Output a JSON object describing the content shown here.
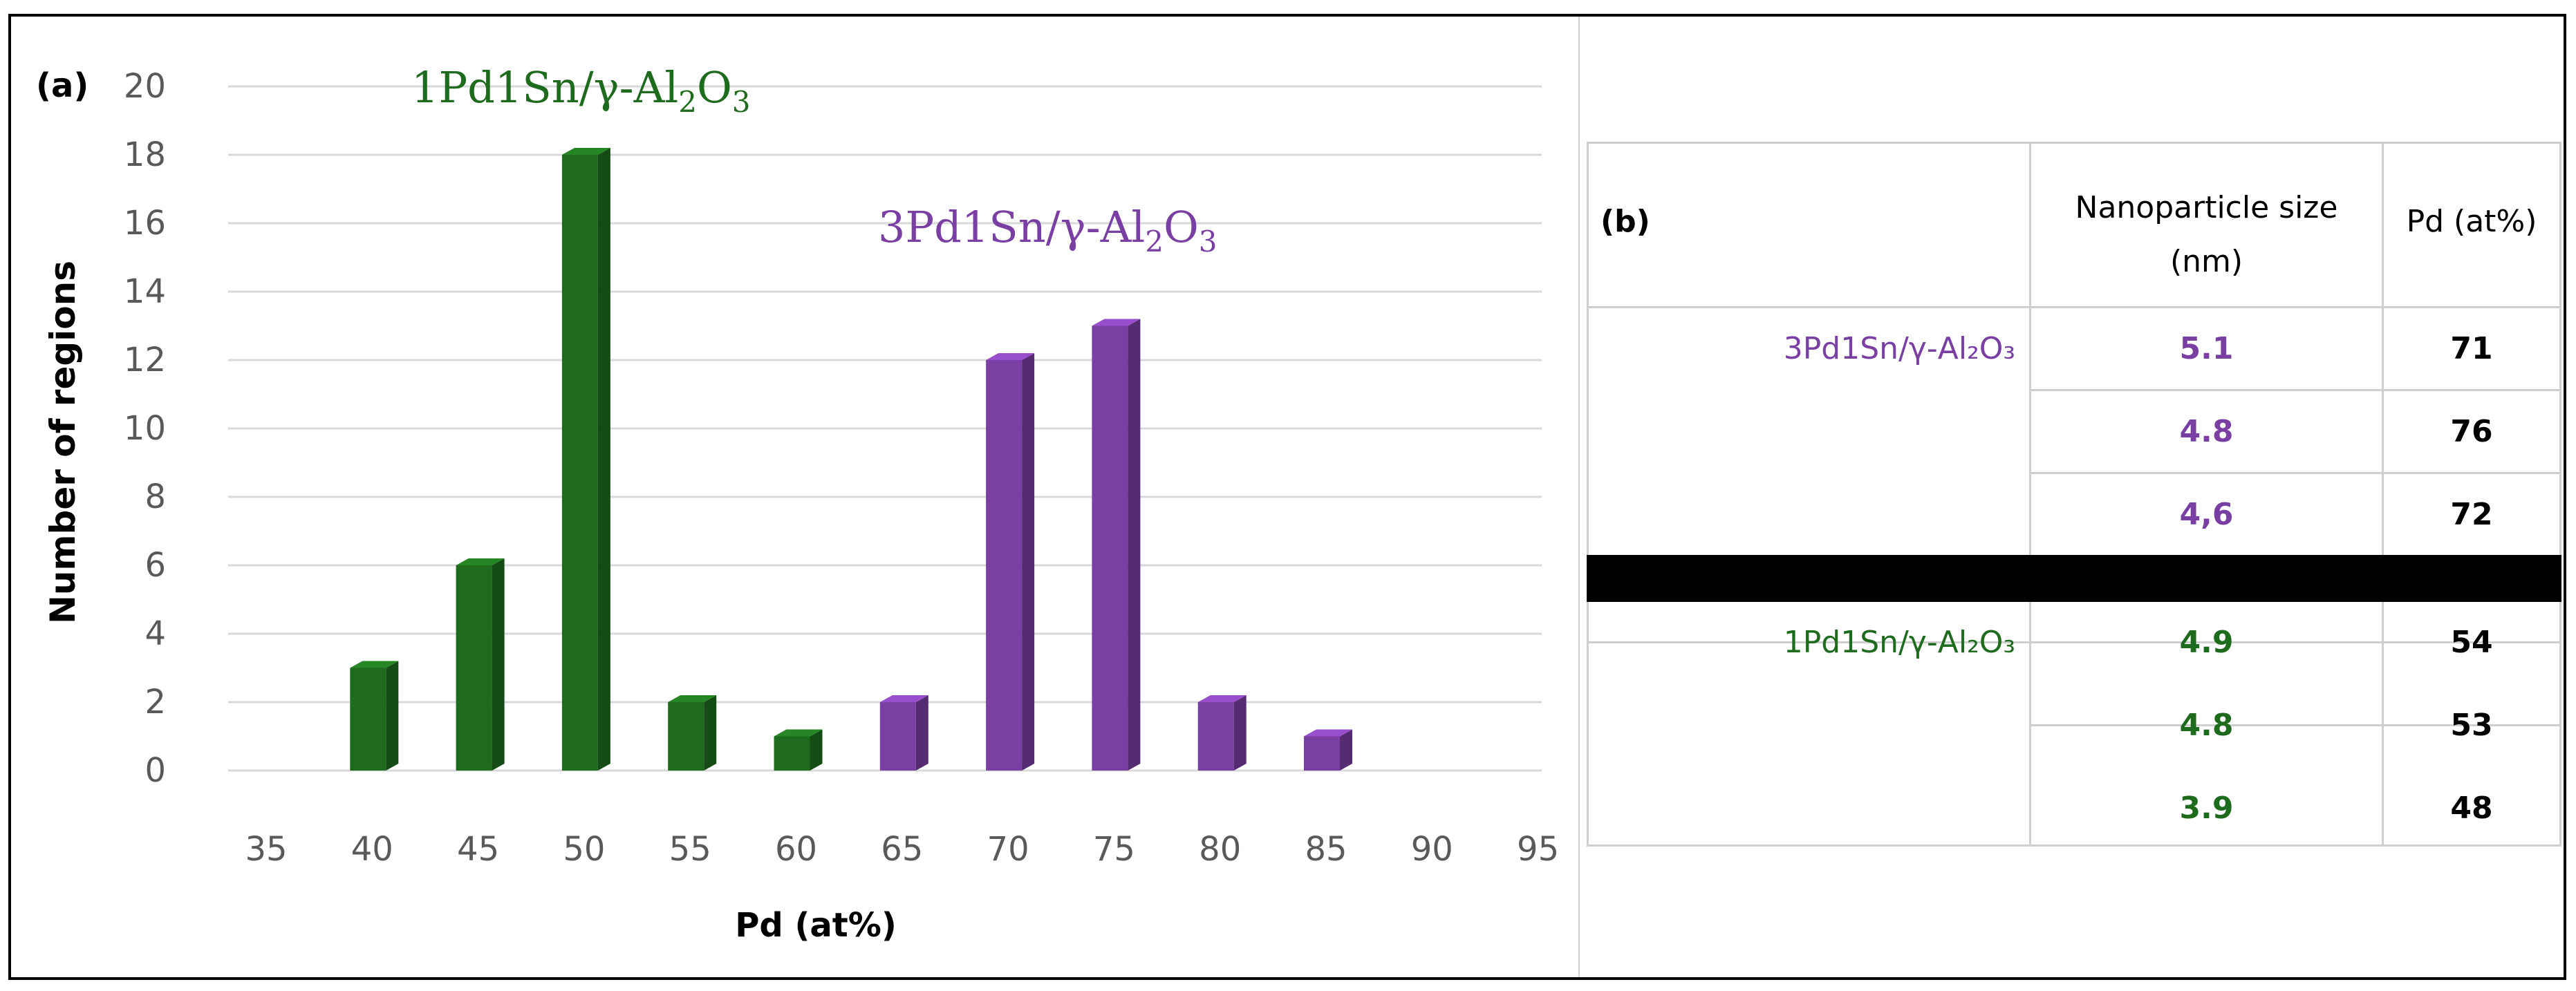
{
  "panel_a_label": "(a)",
  "chart_data": {
    "type": "bar",
    "xlabel": "Pd (at%)",
    "ylabel": "Number of regions",
    "x_ticks": [
      "35",
      "40",
      "45",
      "50",
      "55",
      "60",
      "65",
      "70",
      "75",
      "80",
      "85",
      "90",
      "95"
    ],
    "y_ticks": [
      "0",
      "2",
      "4",
      "6",
      "8",
      "10",
      "12",
      "14",
      "16",
      "18",
      "20"
    ],
    "ylim": [
      0,
      20
    ],
    "grid": true,
    "annotations": [
      {
        "text": "1Pd1Sn/γ-Al",
        "sub1": "2",
        "mid": "O",
        "sub2": "3",
        "color": "#1e6b1e"
      },
      {
        "text": "3Pd1Sn/γ-Al",
        "sub1": "2",
        "mid": "O",
        "sub2": "3",
        "color": "#7a3fa3"
      }
    ],
    "series": [
      {
        "color": "#1e6b1e",
        "points": [
          {
            "x": 40,
            "y": 3
          },
          {
            "x": 45,
            "y": 6
          },
          {
            "x": 50,
            "y": 18
          },
          {
            "x": 55,
            "y": 2
          },
          {
            "x": 60,
            "y": 1
          }
        ]
      },
      {
        "color": "#7a3fa3",
        "points": [
          {
            "x": 65,
            "y": 2
          },
          {
            "x": 70,
            "y": 12
          },
          {
            "x": 75,
            "y": 13
          },
          {
            "x": 80,
            "y": 2
          },
          {
            "x": 85,
            "y": 1
          }
        ]
      }
    ]
  },
  "table": {
    "panel_label": "(b)",
    "col_size": "Nanoparticle size (nm)",
    "col_size_l1": "Nanoparticle size",
    "col_size_l2": "(nm)",
    "col_pd": "Pd (at%)",
    "groups": [
      {
        "name": "3Pd1Sn/γ-Al₂O₃",
        "color": "#7a3fa3",
        "rows": [
          {
            "size": "5.1",
            "pd": "71"
          },
          {
            "size": "4.8",
            "pd": "76"
          },
          {
            "size": "4,6",
            "pd": "72"
          }
        ]
      },
      {
        "name": "1Pd1Sn/γ-Al₂O₃",
        "color": "#1e6b1e",
        "rows": [
          {
            "size": "4.9",
            "pd": "54"
          },
          {
            "size": "4.8",
            "pd": "53"
          },
          {
            "size": "3.9",
            "pd": "48"
          }
        ]
      }
    ]
  }
}
